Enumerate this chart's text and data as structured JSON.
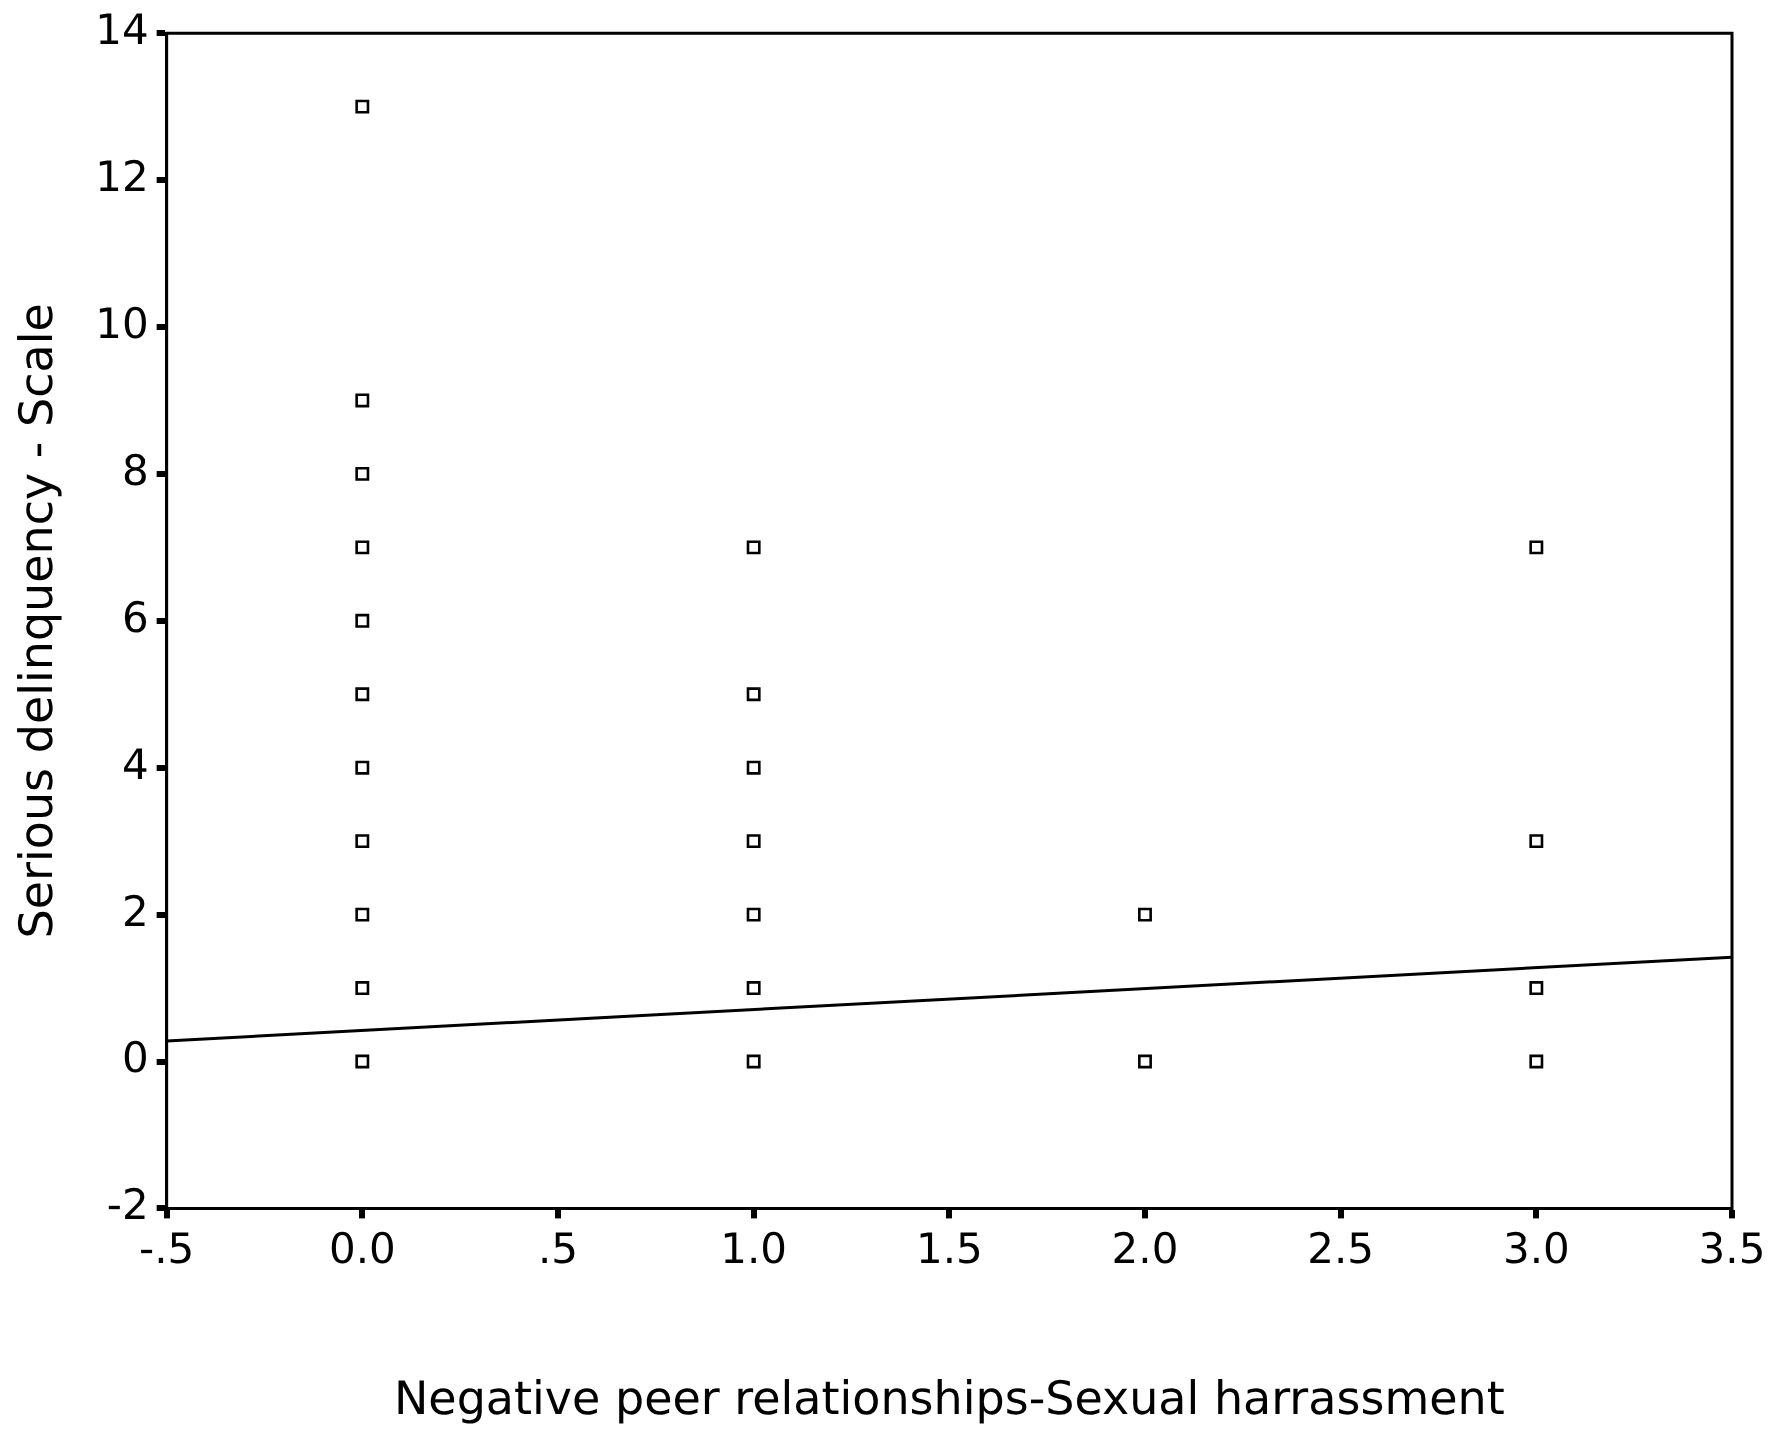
{
  "chart_data": {
    "type": "scatter",
    "xlabel": "Negative peer relationships-Sexual harrassment",
    "ylabel": "Serious delinquency - Scale",
    "xlim": [
      -0.5,
      3.5
    ],
    "ylim": [
      -2,
      14
    ],
    "xticks": [
      {
        "value": -0.5,
        "label": "-.5"
      },
      {
        "value": 0,
        "label": "0.0"
      },
      {
        "value": 0.5,
        "label": ".5"
      },
      {
        "value": 1,
        "label": "1.0"
      },
      {
        "value": 1.5,
        "label": "1.5"
      },
      {
        "value": 2,
        "label": "2.0"
      },
      {
        "value": 2.5,
        "label": "2.5"
      },
      {
        "value": 3,
        "label": "3.0"
      },
      {
        "value": 3.5,
        "label": "3.5"
      }
    ],
    "yticks": [
      -2,
      0,
      2,
      4,
      6,
      8,
      10,
      12,
      14
    ],
    "grid": false,
    "legend": false,
    "marker": "square",
    "series": [
      {
        "color": "#000000",
        "x": [
          0,
          0,
          0,
          0,
          0,
          0,
          0,
          0,
          0,
          0,
          0,
          1,
          1,
          1,
          1,
          1,
          1,
          1,
          2,
          2,
          3,
          3,
          3,
          3
        ],
        "values": [
          0,
          1,
          2,
          3,
          4,
          5,
          6,
          7,
          8,
          9,
          13,
          0,
          1,
          2,
          3,
          4,
          5,
          7,
          0,
          2,
          0,
          1,
          3,
          7
        ]
      },
      {
        "type": "line",
        "color": "#000000",
        "x": [
          -0.5,
          3.5
        ],
        "values": [
          0.28,
          1.42
        ],
        "marker": "none",
        "line_style": "solid"
      }
    ]
  }
}
